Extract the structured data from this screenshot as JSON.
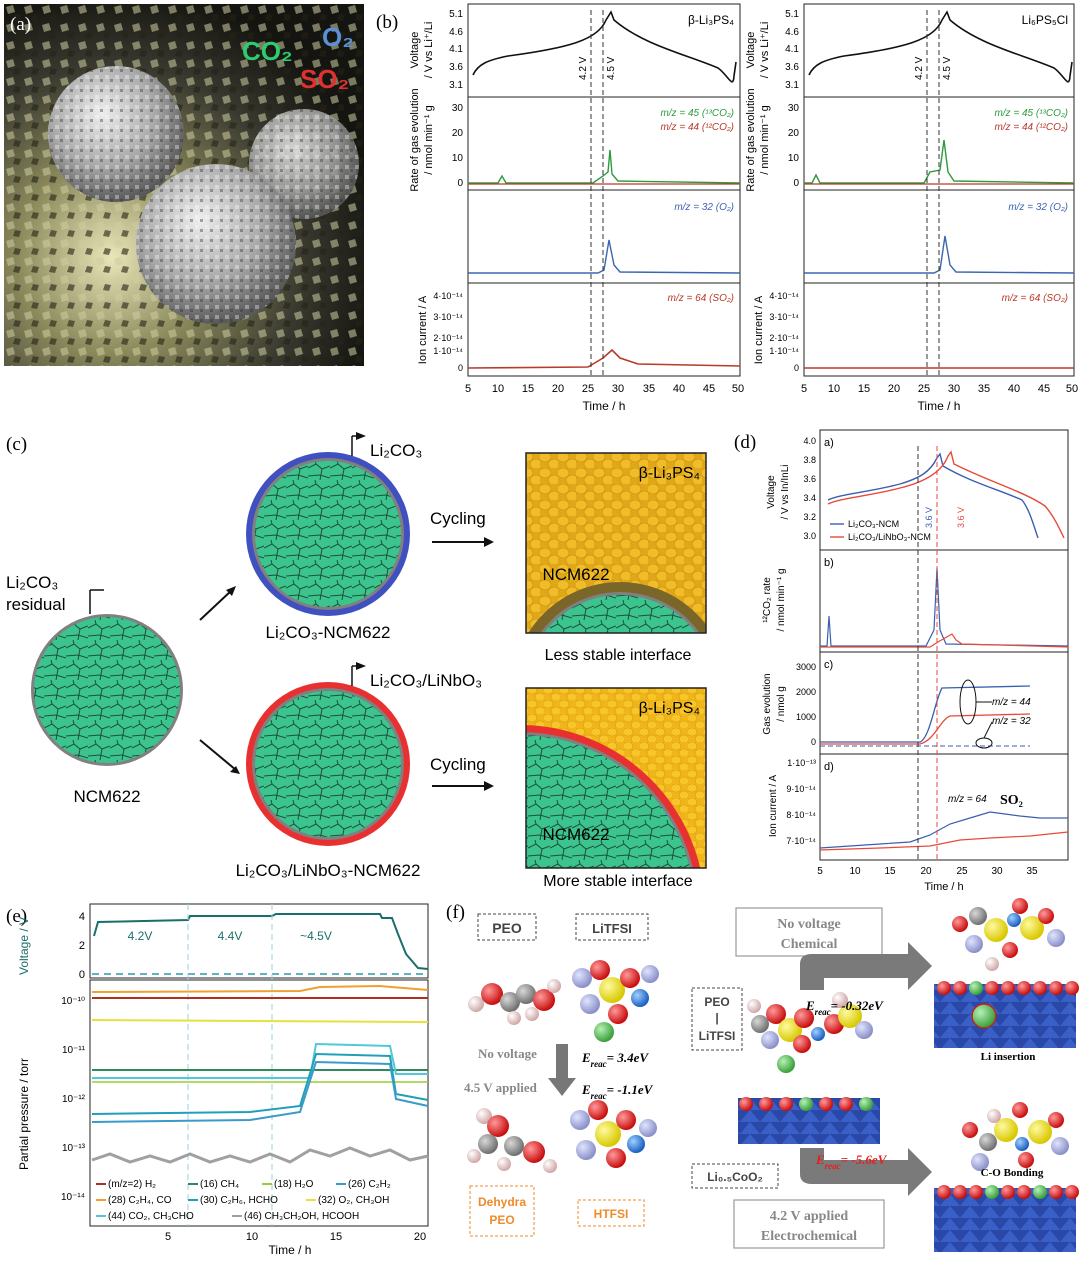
{
  "panel_labels": {
    "a": "(a)",
    "b": "(b)",
    "c": "(c)",
    "d": "(d)",
    "e": "(e)",
    "f": "(f)"
  },
  "panel_a": {
    "co2": "CO₂",
    "o2": "O₂",
    "so2": "SO₂",
    "colors": {
      "co2": "#2ecc71",
      "o2": "#5b8fd6",
      "so2": "#e03030"
    }
  },
  "panel_b": {
    "time_label": "Time / h",
    "x_ticks": [
      "5",
      "10",
      "15",
      "20",
      "25",
      "30",
      "35",
      "40",
      "45",
      "50"
    ],
    "voltage_label": [
      "Voltage",
      "/ V vs Li⁺/Li"
    ],
    "voltage_ticks": [
      "5.1",
      "4.6",
      "4.1",
      "3.6",
      "3.1"
    ],
    "rate_label": [
      "Rate of gas evolution",
      "/ nmol min⁻¹ g",
      "NCM",
      "⁻¹"
    ],
    "rate_ticks": [
      "30",
      "20",
      "10",
      "0"
    ],
    "ion_label": "Ion current / A",
    "ion_ticks": [
      "4·10⁻¹⁴",
      "3·10⁻¹⁴",
      "2·10⁻¹⁴",
      "1·10⁻¹⁴",
      "0"
    ],
    "marker_42": "4.2 V",
    "marker_45": "4.5 V",
    "legend_co2_45": "m/z = 45 (¹³CO₂)",
    "legend_co2_44": "m/z = 44 (¹²CO₂)",
    "legend_o2": "m/z = 32 (O₂)",
    "legend_so2": "m/z = 64 (SO₂)",
    "left_title": "β-Li₃PS₄",
    "right_title": "Li₆PS₅Cl"
  },
  "panel_c": {
    "residual_1": "Li₂CO₃",
    "residual_2": "residual",
    "ncm": "NCM622",
    "coat_top": "Li₂CO₃",
    "coat_bottom": "Li₂CO₃/LiNbO₃",
    "name_top": "Li₂CO₃-NCM622",
    "name_bottom": "Li₂CO₃/LiNbO₃-NCM622",
    "cycling": "Cycling",
    "electrolyte": "β-Li₃PS₄",
    "less": "Less stable interface",
    "more": "More stable interface"
  },
  "panel_d": {
    "sub_a": "a)",
    "sub_b": "b)",
    "sub_c": "c)",
    "sub_d": "d)",
    "v_ticks": [
      "4.0",
      "3.8",
      "3.6",
      "3.4",
      "3.2",
      "3.0"
    ],
    "v_label": [
      "Voltage",
      "/ V vs In/InLi"
    ],
    "legend_blue": "Li₂CO₃-NCM",
    "legend_red": "Li₂CO₃/LiNbO₃-NCM",
    "mark_blue": "3.6 V",
    "mark_red": "3.6 V",
    "rate_label": [
      "¹²CO₂ rate",
      "/ nmol min⁻¹ g",
      "NCM",
      "⁻¹"
    ],
    "gas_ticks": [
      "3000",
      "2000",
      "1000",
      "0"
    ],
    "gas_label": [
      "Gas evolution",
      "/ nmol g",
      "NCM",
      "⁻¹"
    ],
    "mz44": "m/z = 44",
    "mz32": "m/z = 32",
    "ion_ticks": [
      "1·10⁻¹³",
      "9·10⁻¹⁴",
      "8·10⁻¹⁴",
      "7·10⁻¹⁴"
    ],
    "ion_label": "Ion current / A",
    "mz64": "m/z = 64",
    "so2": "SO₂",
    "x_ticks": [
      "5",
      "10",
      "15",
      "20",
      "25",
      "30",
      "35"
    ],
    "time_label": "Time / h",
    "colors": {
      "blue": "#3a5fb0",
      "red": "#e84a3a"
    }
  },
  "panel_e": {
    "v_label": "Voltage / V",
    "v_ticks": [
      "4",
      "2",
      "0"
    ],
    "stage_1": "4.2V",
    "stage_2": "4.4V",
    "stage_3": "~4.5V",
    "p_label": "Partial pressure / torr",
    "p_ticks": [
      "10⁻¹⁰",
      "10⁻¹¹",
      "10⁻¹²",
      "10⁻¹³",
      "10⁻¹⁴"
    ],
    "x_ticks": [
      "5",
      "10",
      "15",
      "20"
    ],
    "time_label": "Time / h",
    "legend": [
      {
        "text": "(m/z=2) H₂",
        "color": "#b03020"
      },
      {
        "text": "(16) CH₄",
        "color": "#2e8b57"
      },
      {
        "text": "(18) H₂O",
        "color": "#9acd32"
      },
      {
        "text": "(26) C₂H₂",
        "color": "#3a9ac9"
      },
      {
        "text": "(28) C₂H₄, CO",
        "color": "#f0a030"
      },
      {
        "text": "(30) C₂H₆, HCHO",
        "color": "#20a0b8"
      },
      {
        "text": "(32) O₂, CH₃OH",
        "color": "#e8e040"
      },
      {
        "text": "(44) CO₂, CH₃CHO",
        "color": "#50c8d8"
      },
      {
        "text": "(46) CH₃CH₂OH, HCOOH",
        "color": "#a0a0a0"
      }
    ]
  },
  "panel_f": {
    "peo": "PEO",
    "litfsi": "LiTFSI",
    "no_voltage": "No voltage",
    "applied_45": "4.5 V applied",
    "e1": "= 3.4eV",
    "e2": "= -1.1eV",
    "dehydra_1": "Dehydra",
    "dehydra_2": "PEO",
    "htfsi": "HTFSI",
    "peo_litfsi_1": "PEO",
    "peo_litfsi_2": "|",
    "peo_litfsi_3": "LiTFSI",
    "chem_1": "No voltage",
    "chem_2": "Chemical",
    "e3": "= -0.32eV",
    "e4": "= -5.6eV",
    "li_insertion": "Li insertion",
    "licoo2": "Li₀.₅CoO₂",
    "co_bonding": "C-O Bonding",
    "electro_1": "4.2 V applied",
    "electro_2": "Electrochemical",
    "ereac": "E"
  }
}
